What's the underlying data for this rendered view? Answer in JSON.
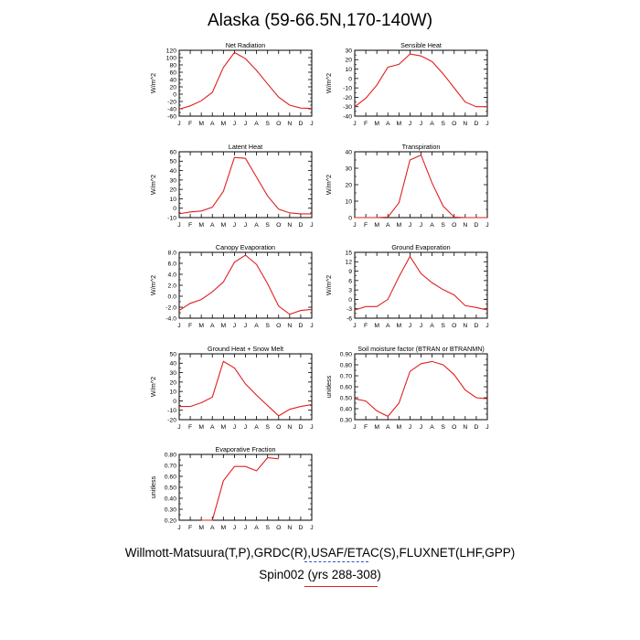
{
  "page": {
    "title": "Alaska (59-66.5N,170-140W)"
  },
  "footer": {
    "line1": "Willmott-Matsuura(T,P),GRDC(R),USAF/ETAC(S),FLUXNET(LHF,GPP)",
    "line2": "Spin002 (yrs 288-308)"
  },
  "colors": {
    "series": "#e02020",
    "obs_dash": "#3050c0"
  },
  "chart_data": [
    {
      "type": "line",
      "title": "Net Radiation",
      "ylabel": "W/m^2",
      "categories": [
        "J",
        "F",
        "M",
        "A",
        "M",
        "J",
        "J",
        "A",
        "S",
        "O",
        "N",
        "D",
        "J"
      ],
      "ylim": [
        -60,
        120
      ],
      "yticks": [
        -60,
        -40,
        -20,
        0,
        20,
        40,
        60,
        80,
        100,
        120
      ],
      "ytick_labels": [
        "-60",
        "-40",
        "-20",
        "0",
        "20",
        "40",
        "60",
        "80",
        "100",
        "120"
      ],
      "values": [
        -41,
        -32,
        -18,
        5,
        73,
        114,
        97,
        65,
        28,
        -8,
        -30,
        -38,
        -39
      ]
    },
    {
      "type": "line",
      "title": "Sensible Heat",
      "ylabel": "W/m^2",
      "categories": [
        "J",
        "F",
        "M",
        "A",
        "M",
        "J",
        "J",
        "A",
        "S",
        "O",
        "N",
        "D",
        "J"
      ],
      "ylim": [
        -40,
        30
      ],
      "yticks": [
        -40,
        -30,
        -20,
        -10,
        0,
        10,
        20,
        30
      ],
      "ytick_labels": [
        "-40",
        "-30",
        "-20",
        "-10",
        "0",
        "10",
        "20",
        "30"
      ],
      "values": [
        -30,
        -21,
        -7,
        12,
        15,
        26,
        24,
        18,
        5,
        -10,
        -25,
        -30,
        -30
      ]
    },
    {
      "type": "line",
      "title": "Latent Heat",
      "ylabel": "W/m^2",
      "categories": [
        "J",
        "F",
        "M",
        "A",
        "M",
        "J",
        "J",
        "A",
        "S",
        "O",
        "N",
        "D",
        "J"
      ],
      "ylim": [
        -10,
        60
      ],
      "yticks": [
        -10,
        0,
        10,
        20,
        30,
        40,
        50,
        60
      ],
      "ytick_labels": [
        "-10",
        "0",
        "10",
        "20",
        "30",
        "40",
        "50",
        "60"
      ],
      "values": [
        -6,
        -4,
        -3,
        1,
        18,
        54,
        53,
        33,
        13,
        -1,
        -5,
        -6,
        -6
      ]
    },
    {
      "type": "line",
      "title": "Transpiration",
      "ylabel": "W/m^2",
      "categories": [
        "J",
        "F",
        "M",
        "A",
        "M",
        "J",
        "J",
        "A",
        "S",
        "O",
        "N",
        "D",
        "J"
      ],
      "ylim": [
        0,
        40
      ],
      "yticks": [
        0,
        10,
        20,
        30,
        40
      ],
      "ytick_labels": [
        "0",
        "10",
        "20",
        "30",
        "40"
      ],
      "values": [
        0,
        0,
        0,
        0.3,
        9,
        35,
        38,
        21,
        7,
        0.3,
        0,
        0,
        0
      ]
    },
    {
      "type": "line",
      "title": "Canopy Evaporation",
      "ylabel": "W/m^2",
      "categories": [
        "J",
        "F",
        "M",
        "A",
        "M",
        "J",
        "J",
        "A",
        "S",
        "O",
        "N",
        "D",
        "J"
      ],
      "ylim": [
        -4,
        8
      ],
      "yticks": [
        -4,
        -2,
        0,
        2,
        4,
        6,
        8
      ],
      "ytick_labels": [
        "-4.0",
        "-2.0",
        "0.0",
        "2.0",
        "4.0",
        "6.0",
        "8.0"
      ],
      "values": [
        -2.6,
        -1.3,
        -0.6,
        0.8,
        2.6,
        6.2,
        7.5,
        5.8,
        2.3,
        -1.8,
        -3.3,
        -2.6,
        -2.4
      ]
    },
    {
      "type": "line",
      "title": "Ground Evaporation",
      "ylabel": "W/m^2",
      "categories": [
        "J",
        "F",
        "M",
        "A",
        "M",
        "J",
        "J",
        "A",
        "S",
        "O",
        "N",
        "D",
        "J"
      ],
      "ylim": [
        -6,
        15
      ],
      "yticks": [
        -6,
        -3,
        0,
        3,
        6,
        9,
        12,
        15
      ],
      "ytick_labels": [
        "-6",
        "-3",
        "0",
        "3",
        "6",
        "9",
        "12",
        "15"
      ],
      "values": [
        -3.4,
        -2.3,
        -2.3,
        0,
        7.2,
        13.7,
        8.2,
        5.3,
        3.1,
        1.4,
        -2.0,
        -2.6,
        -3.4
      ]
    },
    {
      "type": "line",
      "title": "Ground Heat + Snow Melt",
      "ylabel": "W/m^2",
      "categories": [
        "J",
        "F",
        "M",
        "A",
        "M",
        "J",
        "J",
        "A",
        "S",
        "O",
        "N",
        "D",
        "J"
      ],
      "ylim": [
        -20,
        50
      ],
      "yticks": [
        -20,
        -10,
        0,
        10,
        20,
        30,
        40,
        50
      ],
      "ytick_labels": [
        "-20",
        "-10",
        "0",
        "10",
        "20",
        "30",
        "40",
        "50"
      ],
      "values": [
        -6,
        -6,
        -2,
        4,
        42,
        35,
        18,
        6,
        -5,
        -16,
        -9,
        -6,
        -4
      ]
    },
    {
      "type": "line",
      "title": "Soil moisture factor (BTRAN or BTRANMN)",
      "ylabel": "unitless",
      "categories": [
        "J",
        "F",
        "M",
        "A",
        "M",
        "J",
        "J",
        "A",
        "S",
        "O",
        "N",
        "D",
        "J"
      ],
      "ylim": [
        0.3,
        0.9
      ],
      "yticks": [
        0.3,
        0.4,
        0.5,
        0.6,
        0.7,
        0.8,
        0.9
      ],
      "ytick_labels": [
        "0.30",
        "0.40",
        "0.50",
        "0.60",
        "0.70",
        "0.80",
        "0.90"
      ],
      "values": [
        0.49,
        0.47,
        0.38,
        0.33,
        0.45,
        0.74,
        0.81,
        0.83,
        0.8,
        0.71,
        0.57,
        0.5,
        0.49
      ]
    },
    {
      "type": "line",
      "title": "Evaporative Fraction",
      "ylabel": "unitless",
      "categories": [
        "J",
        "F",
        "M",
        "A",
        "M",
        "J",
        "J",
        "A",
        "S",
        "O",
        "N",
        "D",
        "J"
      ],
      "ylim": [
        0.2,
        0.8
      ],
      "yticks": [
        0.2,
        0.3,
        0.4,
        0.5,
        0.6,
        0.7,
        0.8
      ],
      "ytick_labels": [
        "0.20",
        "0.30",
        "0.40",
        "0.50",
        "0.60",
        "0.70",
        "0.80"
      ],
      "values": [
        null,
        null,
        0.2,
        0.2,
        0.56,
        0.69,
        0.69,
        0.65,
        0.77,
        0.76,
        null,
        null,
        null
      ]
    }
  ]
}
